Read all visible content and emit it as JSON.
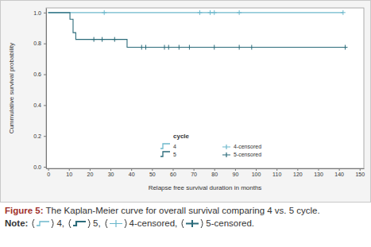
{
  "chart_data": {
    "type": "step",
    "x_label": "Relapse free survival duration in months",
    "y_label": "Cummulative survival probability",
    "legend_title": "cycle",
    "legend": "bottom",
    "caption_label": "Figure 5:",
    "caption": "The Kaplan-Meier curve for overall survival comparing 4 vs. 5 cycle.",
    "note_label": "Note:",
    "note_entries": [
      "4,",
      "5,",
      "4-censored,",
      "5-censored."
    ],
    "xlim": [
      -1,
      152
    ],
    "xticks": [
      0,
      10,
      20,
      30,
      40,
      50,
      60,
      70,
      80,
      90,
      100,
      110,
      120,
      130,
      140,
      150
    ],
    "ylim": [
      -0.01,
      1.03
    ],
    "yticks": [
      {
        "value": 0,
        "label": "0.0"
      },
      0.2,
      0.4,
      0.6,
      0.8,
      {
        "value": 1,
        "label": "1.0"
      }
    ],
    "series": [
      {
        "name": "4",
        "censored_name": "4-censored",
        "color": "#6cb8cc",
        "x": [
          0,
          142
        ],
        "values": [
          1,
          1
        ],
        "censored": {
          "x": [
            27,
            73,
            78,
            80,
            92,
            142
          ],
          "values": [
            1,
            1,
            1,
            1,
            1,
            1
          ]
        }
      },
      {
        "name": "5",
        "censored_name": "5-censored",
        "color": "#2b6b7a",
        "x": [
          0,
          10.5,
          12,
          13.3,
          38,
          143
        ],
        "values": [
          1,
          0.957,
          0.87,
          0.826,
          0.775,
          0.775
        ],
        "censored": {
          "x": [
            22,
            26,
            32,
            45,
            47,
            56,
            58,
            63,
            68,
            80,
            92,
            98,
            143
          ],
          "values": [
            0.826,
            0.826,
            0.826,
            0.775,
            0.775,
            0.775,
            0.775,
            0.775,
            0.775,
            0.775,
            0.775,
            0.775,
            0.775
          ]
        }
      }
    ]
  }
}
